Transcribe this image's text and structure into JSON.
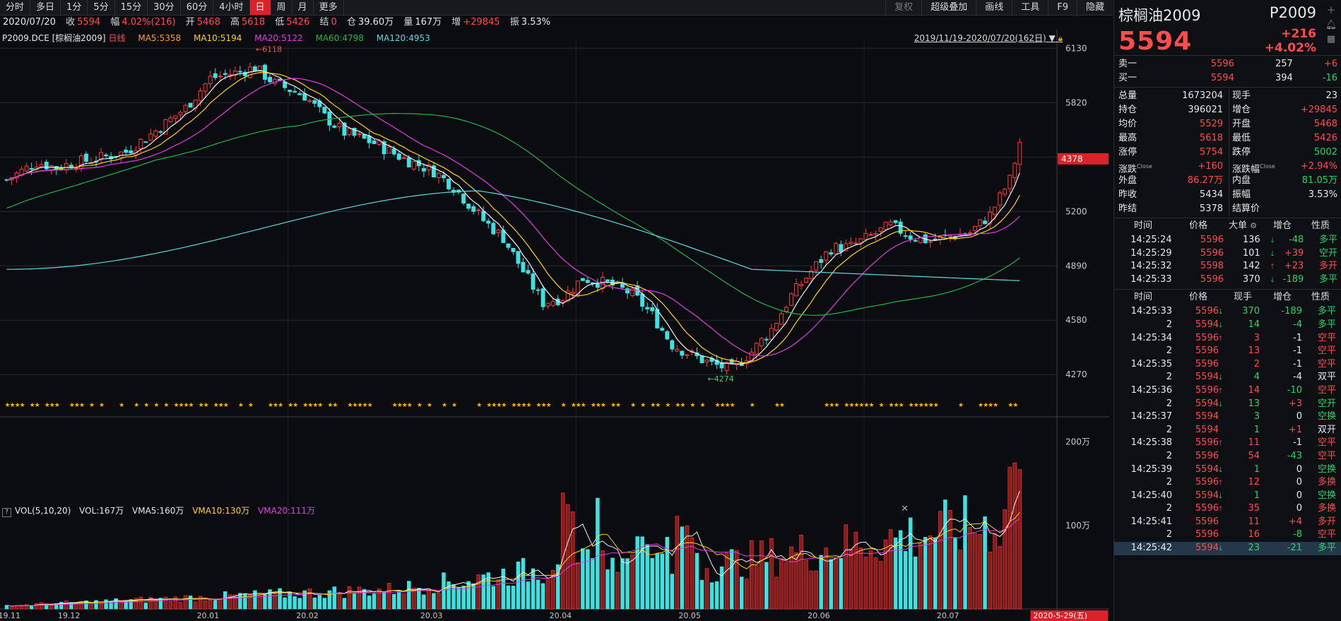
{
  "toolbar": {
    "tabs": [
      "分时",
      "多日",
      "1分",
      "5分",
      "15分",
      "30分",
      "60分",
      "4小时",
      "日",
      "周",
      "月",
      "更多"
    ],
    "active_tab": "日",
    "right_tabs": [
      "复权",
      "超级叠加",
      "画线",
      "工具",
      "F9",
      "隐藏"
    ]
  },
  "infobar": {
    "date": "2020/07/20",
    "close_label": "收",
    "close": "5594",
    "range_label": "幅",
    "range": "4.02%(216)",
    "open_label": "开",
    "open": "5468",
    "high_label": "高",
    "high": "5618",
    "low_label": "低",
    "low": "5426",
    "settle_label": "结",
    "settle": "0",
    "oi_label": "仓",
    "oi": "39.60万",
    "vol_label": "量",
    "vol": "167万",
    "add_label": "增",
    "add": "+29845",
    "amp_label": "振",
    "amp": "3.53%"
  },
  "chart_legend": {
    "symbol": "P2009.DCE [棕榈油2009]",
    "period": "日线",
    "ma5": "MA5:5358",
    "ma10": "MA10:5194",
    "ma20": "MA20:5122",
    "ma60": "MA60:4798",
    "ma120": "MA120:4953",
    "date_range": "2019/11/19-2020/07/20(162日)"
  },
  "vol_legend": {
    "name": "VOL(5,10,20)",
    "vol": "VOL:167万",
    "vma5": "VMA5:160万",
    "vma10": "VMA10:130万",
    "vma20": "VMA20:111万"
  },
  "chart_data": {
    "type": "candlestick",
    "ylim": [
      4150,
      6180
    ],
    "y_ticks": [
      "6130",
      "5820",
      "5510",
      "5200",
      "4890",
      "4580",
      "4270"
    ],
    "y_tick_values": [
      6130,
      5820,
      5510,
      5200,
      4890,
      4580,
      4270
    ],
    "vol_ticks": [
      "200万",
      "100万"
    ],
    "vol_tick_values": [
      200,
      100
    ],
    "x_labels": [
      "19.11",
      "19.12",
      "20.01",
      "20.02",
      "20.03",
      "20.04",
      "20.05",
      "20.06",
      "20.07",
      "2020-5-29(五)"
    ],
    "x_label_index": [
      0,
      12,
      40,
      60,
      85,
      111,
      137,
      163,
      189,
      209
    ],
    "high_marker": "6118",
    "low_marker": "4274",
    "last_price_tag": "4378",
    "count": 212,
    "ohlc_keypoints": [
      [
        0,
        5380
      ],
      [
        6,
        5480
      ],
      [
        10,
        5450
      ],
      [
        14,
        5480
      ],
      [
        18,
        5500
      ],
      [
        24,
        5540
      ],
      [
        30,
        5660
      ],
      [
        36,
        5790
      ],
      [
        41,
        5960
      ],
      [
        46,
        5990
      ],
      [
        50,
        6020
      ],
      [
        54,
        5930
      ],
      [
        60,
        5860
      ],
      [
        64,
        5740
      ],
      [
        68,
        5650
      ],
      [
        74,
        5590
      ],
      [
        80,
        5500
      ],
      [
        86,
        5430
      ],
      [
        90,
        5340
      ],
      [
        96,
        5150
      ],
      [
        100,
        5050
      ],
      [
        104,
        4860
      ],
      [
        108,
        4680
      ],
      [
        112,
        4710
      ],
      [
        116,
        4820
      ],
      [
        122,
        4780
      ],
      [
        126,
        4730
      ],
      [
        130,
        4610
      ],
      [
        134,
        4440
      ],
      [
        138,
        4380
      ],
      [
        142,
        4330
      ],
      [
        146,
        4300
      ],
      [
        150,
        4400
      ],
      [
        154,
        4530
      ],
      [
        158,
        4720
      ],
      [
        162,
        4860
      ],
      [
        166,
        4990
      ],
      [
        170,
        5000
      ],
      [
        174,
        5060
      ],
      [
        178,
        5120
      ],
      [
        182,
        5060
      ],
      [
        186,
        5030
      ],
      [
        190,
        5060
      ],
      [
        194,
        5080
      ],
      [
        198,
        5180
      ],
      [
        202,
        5380
      ],
      [
        204,
        5590
      ]
    ],
    "ma_colors": {
      "ma5": "#f2f2f2",
      "ma10": "#ffd21a",
      "ma20": "#e43ce4",
      "ma60": "#22b34a",
      "ma120": "#5fd8e0"
    }
  },
  "quote": {
    "name": "棕榈油2009",
    "code": "P2009",
    "last": "5594",
    "change": "+216",
    "pct": "+4.02%",
    "book": [
      {
        "label": "卖一",
        "price": "5596",
        "qty": "257",
        "chg": "+6",
        "price_color": "red",
        "chg_color": "red"
      },
      {
        "label": "买一",
        "price": "5594",
        "qty": "394",
        "chg": "-16",
        "price_color": "red",
        "chg_color": "green"
      }
    ],
    "stats": [
      {
        "l": "总量",
        "lv": "1673204",
        "lc": "white",
        "r": "现手",
        "rv": "23",
        "rc": "white"
      },
      {
        "l": "持仓",
        "lv": "396021",
        "lc": "white",
        "r": "增仓",
        "rv": "+29845",
        "rc": "red"
      },
      {
        "l": "均价",
        "lv": "5529",
        "lc": "red",
        "r": "开盘",
        "rv": "5468",
        "rc": "red"
      },
      {
        "l": "最高",
        "lv": "5618",
        "lc": "red",
        "r": "最低",
        "rv": "5426",
        "rc": "red"
      },
      {
        "l": "涨停",
        "lv": "5754",
        "lc": "red",
        "r": "跌停",
        "rv": "5002",
        "rc": "green"
      },
      {
        "l": "涨跌",
        "lsup": "Close",
        "lv": "+160",
        "lc": "red",
        "r": "涨跌幅",
        "rsup": "Close",
        "rv": "+2.94%",
        "rc": "red"
      },
      {
        "l": "外盘",
        "lv": "86.27万",
        "lc": "red",
        "r": "内盘",
        "rv": "81.05万",
        "rc": "green"
      },
      {
        "l": "昨收",
        "lv": "5434",
        "lc": "white",
        "r": "振幅",
        "rv": "3.53%",
        "rc": "white"
      },
      {
        "l": "昨结",
        "lv": "5378",
        "lc": "white",
        "r": "结算价",
        "rv": "",
        "rc": "white"
      }
    ],
    "big_head": [
      "时间",
      "价格",
      "大单",
      "增仓",
      "性质"
    ],
    "big_trades": [
      {
        "time": "14:25:24",
        "price": "5596",
        "qty": "136",
        "dir": "down",
        "oi": "-48",
        "oic": "green",
        "type": "多平",
        "tc": "green"
      },
      {
        "time": "14:25:29",
        "price": "5596",
        "qty": "101",
        "dir": "down",
        "oi": "+39",
        "oic": "red",
        "type": "空开",
        "tc": "green"
      },
      {
        "time": "14:25:32",
        "price": "5598",
        "qty": "142",
        "dir": "up",
        "oi": "+23",
        "oic": "red",
        "type": "多开",
        "tc": "red"
      },
      {
        "time": "14:25:33",
        "price": "5596",
        "qty": "370",
        "dir": "down",
        "oi": "-189",
        "oic": "green",
        "type": "多平",
        "tc": "green"
      }
    ],
    "tick_head": [
      "时间",
      "价格",
      "现手",
      "增仓",
      "性质"
    ],
    "ticks": [
      {
        "t": "14:25:33",
        "p": "5596",
        "a": "down",
        "q": "370",
        "qc": "green",
        "o": "-189",
        "oc": "green",
        "n": "多平",
        "nc": "green"
      },
      {
        "t": "2",
        "p": "5594",
        "a": "down",
        "q": "14",
        "qc": "green",
        "o": "-4",
        "oc": "green",
        "n": "多平",
        "nc": "green"
      },
      {
        "t": "14:25:34",
        "p": "5596",
        "a": "up",
        "q": "3",
        "qc": "red",
        "o": "-1",
        "oc": "white",
        "n": "空平",
        "nc": "red"
      },
      {
        "t": "2",
        "p": "5596",
        "a": "",
        "q": "13",
        "qc": "red",
        "o": "-1",
        "oc": "white",
        "n": "空平",
        "nc": "red"
      },
      {
        "t": "14:25:35",
        "p": "5596",
        "a": "",
        "q": "2",
        "qc": "red",
        "o": "-1",
        "oc": "white",
        "n": "空平",
        "nc": "red"
      },
      {
        "t": "2",
        "p": "5594",
        "a": "down",
        "q": "4",
        "qc": "green",
        "o": "-4",
        "oc": "white",
        "n": "双平",
        "nc": "white"
      },
      {
        "t": "14:25:36",
        "p": "5596",
        "a": "up",
        "q": "14",
        "qc": "red",
        "o": "-10",
        "oc": "green",
        "n": "空平",
        "nc": "red"
      },
      {
        "t": "2",
        "p": "5594",
        "a": "down",
        "q": "13",
        "qc": "green",
        "o": "+3",
        "oc": "red",
        "n": "空开",
        "nc": "green"
      },
      {
        "t": "14:25:37",
        "p": "5594",
        "a": "",
        "q": "3",
        "qc": "green",
        "o": "0",
        "oc": "white",
        "n": "空换",
        "nc": "green"
      },
      {
        "t": "2",
        "p": "5594",
        "a": "",
        "q": "1",
        "qc": "green",
        "o": "+1",
        "oc": "red",
        "n": "双开",
        "nc": "white"
      },
      {
        "t": "14:25:38",
        "p": "5596",
        "a": "up",
        "q": "11",
        "qc": "red",
        "o": "-1",
        "oc": "white",
        "n": "空平",
        "nc": "red"
      },
      {
        "t": "2",
        "p": "5596",
        "a": "",
        "q": "54",
        "qc": "red",
        "o": "-43",
        "oc": "green",
        "n": "空平",
        "nc": "red"
      },
      {
        "t": "14:25:39",
        "p": "5594",
        "a": "down",
        "q": "1",
        "qc": "green",
        "o": "0",
        "oc": "white",
        "n": "空换",
        "nc": "green"
      },
      {
        "t": "2",
        "p": "5596",
        "a": "up",
        "q": "12",
        "qc": "red",
        "o": "0",
        "oc": "white",
        "n": "多换",
        "nc": "red"
      },
      {
        "t": "14:25:40",
        "p": "5594",
        "a": "down",
        "q": "1",
        "qc": "green",
        "o": "0",
        "oc": "white",
        "n": "空换",
        "nc": "green"
      },
      {
        "t": "2",
        "p": "5596",
        "a": "up",
        "q": "35",
        "qc": "red",
        "o": "0",
        "oc": "white",
        "n": "多换",
        "nc": "red"
      },
      {
        "t": "14:25:41",
        "p": "5596",
        "a": "",
        "q": "11",
        "qc": "red",
        "o": "+4",
        "oc": "red",
        "n": "多开",
        "nc": "red"
      },
      {
        "t": "2",
        "p": "5596",
        "a": "",
        "q": "16",
        "qc": "red",
        "o": "-8",
        "oc": "green",
        "n": "空平",
        "nc": "red"
      },
      {
        "t": "14:25:42",
        "p": "5594",
        "a": "down",
        "q": "23",
        "qc": "green",
        "o": "-21",
        "oc": "green",
        "n": "多平",
        "nc": "green"
      }
    ]
  }
}
